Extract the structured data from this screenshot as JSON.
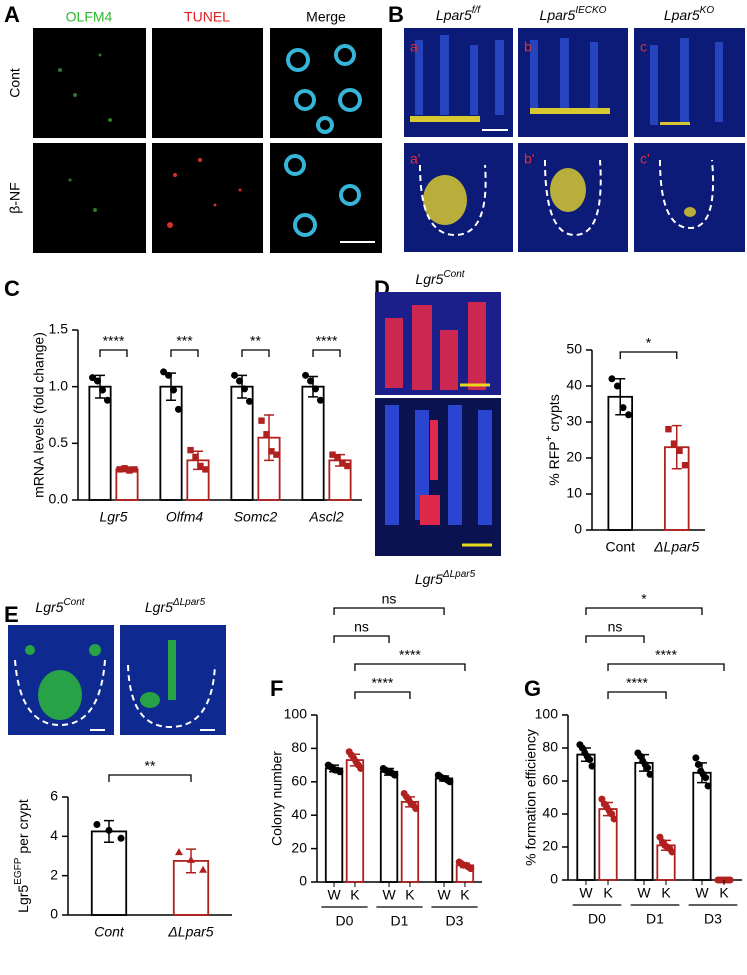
{
  "panel_labels": [
    "A",
    "B",
    "C",
    "D",
    "E",
    "F",
    "G"
  ],
  "panel_a": {
    "columns": [
      "OLFM4",
      "TUNEL",
      "Merge"
    ],
    "column_colors": [
      "#2db82d",
      "#e02020",
      "#000000"
    ],
    "rows": [
      "Cont",
      "β-NF"
    ]
  },
  "panel_b": {
    "columns": [
      {
        "text": "Lpar5",
        "sup": "f/f"
      },
      {
        "text": "Lpar5",
        "sup": "IECKO"
      },
      {
        "text": "Lpar5",
        "sup": "KO"
      }
    ],
    "tags": [
      "a",
      "b",
      "c",
      "a'",
      "b'",
      "c'"
    ]
  },
  "panel_d": {
    "images": [
      {
        "text": "Lgr5",
        "sup": "Cont"
      },
      {
        "text": "Lgr5",
        "sup": "ΔLpar5"
      }
    ]
  },
  "panel_e": {
    "images": [
      {
        "text": "Lgr5",
        "sup": "Cont"
      },
      {
        "text": "Lgr5",
        "sup": "ΔLpar5"
      }
    ]
  },
  "chart_data": [
    {
      "type": "bar",
      "y_label": "mRNA levels (fold change)",
      "categories": [
        "Lgr5",
        "Olfm4",
        "Somc2",
        "Ascl2"
      ],
      "category_style": "italic",
      "series": [
        {
          "color": "#000000",
          "marker": "circle",
          "values": [
            1,
            1,
            1,
            1
          ],
          "errors": [
            0.1,
            0.12,
            0.1,
            0.09
          ],
          "points": [
            [
              1.08,
              1.05,
              0.97,
              0.88
            ],
            [
              1.13,
              1.1,
              0.97,
              0.8
            ],
            [
              1.1,
              1.05,
              0.98,
              0.87
            ],
            [
              1.1,
              1.05,
              0.98,
              0.88
            ]
          ]
        },
        {
          "color": "#b0201f",
          "marker": "square",
          "values": [
            0.27,
            0.35,
            0.55,
            0.35
          ],
          "errors": [
            0.02,
            0.08,
            0.2,
            0.05
          ],
          "points": [
            [
              0.27,
              0.28,
              0.26,
              0.27
            ],
            [
              0.44,
              0.38,
              0.3,
              0.27
            ],
            [
              0.7,
              0.58,
              0.43,
              0.4
            ],
            [
              0.4,
              0.37,
              0.33,
              0.3
            ]
          ]
        }
      ],
      "ylim": [
        0,
        1.5
      ],
      "yticks": [
        {
          "value": 0,
          "label": "0.0"
        },
        0.5,
        {
          "value": 1,
          "label": "1.0"
        },
        1.5
      ],
      "comparisons": [
        {
          "bars": [
            [
              0,
              0
            ],
            [
              1,
              0
            ]
          ],
          "label": "****"
        },
        {
          "bars": [
            [
              0,
              1
            ],
            [
              1,
              1
            ]
          ],
          "label": "***"
        },
        {
          "bars": [
            [
              0,
              2
            ],
            [
              1,
              2
            ]
          ],
          "label": "**"
        },
        {
          "bars": [
            [
              0,
              3
            ],
            [
              1,
              3
            ]
          ],
          "label": "****"
        }
      ]
    },
    {
      "type": "bar",
      "y_label": {
        "text": "% RFP",
        "sup": "+",
        "after": " crypts"
      },
      "categories": [
        "Cont",
        "ΔLpar5"
      ],
      "category_style": [
        "normal",
        "italic"
      ],
      "values": [
        37,
        23
      ],
      "errors": [
        5,
        6
      ],
      "points": [
        [
          42,
          40,
          34,
          32
        ],
        [
          28,
          24,
          22,
          18
        ]
      ],
      "colors": [
        "#000000",
        "#b0201f"
      ],
      "markers": [
        "circle",
        "square"
      ],
      "ylim": [
        0,
        50
      ],
      "yticks": [
        0,
        10,
        20,
        30,
        40,
        50
      ],
      "comparisons": [
        {
          "bars": [
            [
              0
            ],
            [
              1
            ]
          ],
          "label": "*"
        }
      ]
    },
    {
      "type": "bar",
      "y_label": {
        "text": "Lgr5",
        "sup": "EGFP",
        "after": " per crypt"
      },
      "categories": [
        "Cont",
        "ΔLpar5"
      ],
      "category_style": "italic",
      "values": [
        4.25,
        2.75
      ],
      "errors": [
        0.55,
        0.6
      ],
      "points": [
        [
          4.6,
          4.3,
          3.9
        ],
        [
          3.2,
          2.8,
          2.3
        ]
      ],
      "colors": [
        "#000000",
        "#b0201f"
      ],
      "markers": [
        "circle",
        "triangle"
      ],
      "ylim": [
        0,
        6
      ],
      "yticks": [
        0,
        2,
        4,
        6
      ],
      "comparisons": [
        {
          "bars": [
            [
              0
            ],
            [
              1
            ]
          ],
          "label": "**"
        }
      ]
    },
    {
      "type": "bar",
      "y_label": "Colony number",
      "categories": [
        "D0",
        "D1",
        "D3"
      ],
      "series": [
        {
          "name": "W",
          "color": "#000000",
          "marker": "circle",
          "values": [
            68,
            66,
            62
          ],
          "errors": [
            2,
            2,
            1.5
          ],
          "points": [
            [
              70,
              69,
              68,
              67,
              67,
              66
            ],
            [
              68,
              67,
              66,
              66,
              65,
              64
            ],
            [
              64,
              63,
              62,
              62,
              61,
              60
            ]
          ]
        },
        {
          "name": "K",
          "color": "#b0201f",
          "marker": "circle",
          "values": [
            73,
            48,
            10
          ],
          "errors": [
            3.5,
            3,
            1.3
          ],
          "points": [
            [
              78,
              76,
              74,
              72,
              70,
              68
            ],
            [
              53,
              51,
              49,
              47,
              46,
              44
            ],
            [
              12,
              11,
              10,
              10,
              9,
              8
            ]
          ]
        }
      ],
      "ylim": [
        0,
        100
      ],
      "yticks": [
        0,
        20,
        40,
        60,
        80,
        100
      ],
      "comparisons": [
        {
          "bars": [
            [
              1,
              0
            ],
            [
              1,
              1
            ]
          ],
          "label": "****"
        },
        {
          "bars": [
            [
              1,
              0
            ],
            [
              1,
              2
            ]
          ],
          "label": "****"
        },
        {
          "bars": [
            [
              0,
              0
            ],
            [
              0,
              1
            ]
          ],
          "label": "ns"
        },
        {
          "bars": [
            [
              0,
              0
            ],
            [
              0,
              2
            ]
          ],
          "label": "ns"
        }
      ]
    },
    {
      "type": "bar",
      "y_label": "% formation efficiency",
      "categories": [
        "D0",
        "D1",
        "D3"
      ],
      "series": [
        {
          "name": "W",
          "color": "#000000",
          "marker": "circle",
          "values": [
            76,
            71,
            65
          ],
          "errors": [
            4,
            5,
            6
          ],
          "points": [
            [
              82,
              80,
              77,
              75,
              73,
              69
            ],
            [
              77,
              75,
              72,
              70,
              68,
              64
            ],
            [
              74,
              70,
              66,
              64,
              62,
              57
            ]
          ]
        },
        {
          "name": "K",
          "color": "#b0201f",
          "marker": "circle",
          "values": [
            43,
            21,
            0
          ],
          "errors": [
            4,
            3,
            0
          ],
          "points": [
            [
              49,
              46,
              44,
              42,
              40,
              37
            ],
            [
              26,
              23,
              21,
              20,
              19,
              17
            ],
            [
              0,
              0,
              0,
              0,
              0,
              0
            ]
          ]
        }
      ],
      "ylim": [
        0,
        100
      ],
      "yticks": [
        0,
        20,
        40,
        60,
        80,
        100
      ],
      "comparisons": [
        {
          "bars": [
            [
              1,
              0
            ],
            [
              1,
              1
            ]
          ],
          "label": "****"
        },
        {
          "bars": [
            [
              1,
              0
            ],
            [
              1,
              2
            ]
          ],
          "label": "****"
        },
        {
          "bars": [
            [
              0,
              0
            ],
            [
              0,
              1
            ]
          ],
          "label": "ns"
        },
        {
          "bars": [
            [
              0,
              0
            ],
            [
              0,
              2
            ]
          ],
          "label": "*"
        }
      ]
    }
  ]
}
